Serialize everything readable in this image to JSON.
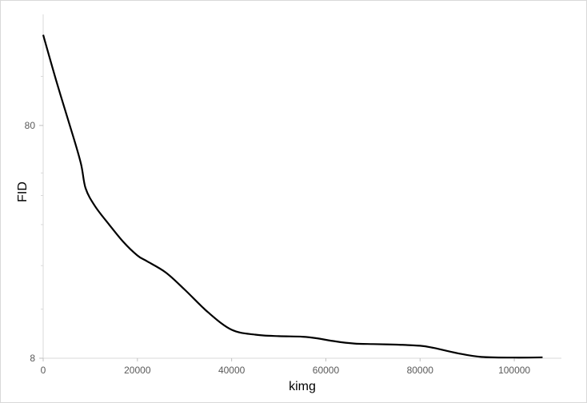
{
  "chart_data": {
    "type": "line",
    "title": "",
    "xlabel": "kimg",
    "ylabel": "FID",
    "y_scale": "log",
    "xlim": [
      0,
      110000
    ],
    "ylim": [
      8,
      240
    ],
    "grid": false,
    "legend": "none",
    "x_tick_labels": [
      "0",
      "20000",
      "40000",
      "60000",
      "80000",
      "100000"
    ],
    "x_ticks": [
      0,
      20000,
      40000,
      60000,
      80000,
      100000
    ],
    "y_tick_labels": [
      "8",
      "80"
    ],
    "y_ticks": [
      8,
      80
    ],
    "y_minor_ticks": [
      13,
      20,
      30,
      40,
      50,
      130
    ],
    "series": [
      {
        "name": "",
        "color": "#000000",
        "x": [
          0,
          3000,
          6000,
          8000,
          9000,
          11000,
          14000,
          17000,
          20000,
          22000,
          26000,
          30000,
          35000,
          40000,
          45000,
          50000,
          55000,
          58000,
          62000,
          66000,
          70000,
          75000,
          80000,
          83000,
          88000,
          93000,
          100000,
          106000
        ],
        "y": [
          196,
          120,
          76,
          55,
          43,
          36,
          30,
          25.3,
          22.1,
          20.9,
          18.7,
          15.8,
          12.6,
          10.6,
          10.1,
          9.95,
          9.9,
          9.75,
          9.45,
          9.25,
          9.2,
          9.15,
          9.05,
          8.85,
          8.4,
          8.1,
          8.05,
          8.07
        ]
      }
    ]
  }
}
